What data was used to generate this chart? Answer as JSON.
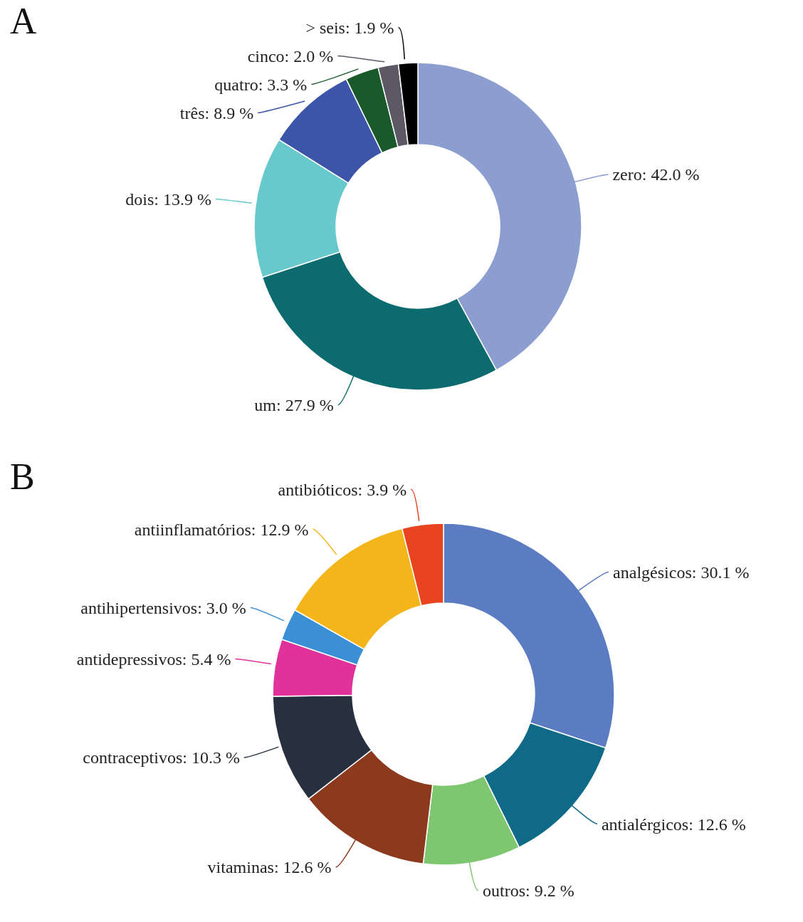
{
  "chart_data": [
    {
      "type": "donut",
      "title": "A",
      "categories": [
        "zero",
        "um",
        "dois",
        "três",
        "quatro",
        "cinco",
        "> seis"
      ],
      "values": [
        42.0,
        27.9,
        13.9,
        8.9,
        3.3,
        2.0,
        1.9
      ],
      "colors": [
        "#8c9dd0",
        "#0b6b6e",
        "#68c9cc",
        "#3d55a8",
        "#1a5a2a",
        "#5d5866",
        "#000000"
      ],
      "value_labels": [
        "42.0 %",
        "27.9 %",
        "13.9 %",
        "8.9 %",
        "3.3 %",
        "2.0 %",
        "1.9 %"
      ]
    },
    {
      "type": "donut",
      "title": "B",
      "categories": [
        "analgésicos",
        "antialérgicos",
        "outros",
        "vitaminas",
        "contraceptivos",
        "antidepressivos",
        "antihipertensivos",
        "antiinflamatórios",
        "antibióticos"
      ],
      "values": [
        30.1,
        12.6,
        9.2,
        12.6,
        10.3,
        5.4,
        3.0,
        12.9,
        3.9
      ],
      "colors": [
        "#5b7cc2",
        "#0e6a86",
        "#7ec66f",
        "#8b3a1e",
        "#27303f",
        "#e0329a",
        "#3b8fd4",
        "#f4b51a",
        "#e8441f"
      ],
      "value_labels": [
        "30.1 %",
        "12.6 %",
        "9.2 %",
        "12.6 %",
        "10.3 %",
        "5.4 %",
        "3.0 %",
        "12.9 %",
        "3.9 %"
      ]
    }
  ]
}
